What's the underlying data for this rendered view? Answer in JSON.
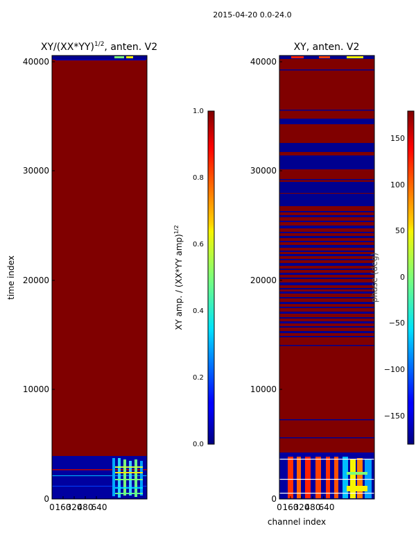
{
  "figure": {
    "suptitle": "2015-04-20 0.0-24.0"
  },
  "chart_data": [
    {
      "type": "heatmap",
      "title": "XY/(XX*YY)¹ᐟ², anten. V2",
      "title_parts": {
        "main": "XY/(XX*YY)",
        "sup": "1/2",
        "suffix": ", anten. V2"
      },
      "xlabel": "",
      "ylabel": "time index",
      "xticks": [
        0,
        160,
        320,
        480,
        640
      ],
      "yticks": [
        0,
        10000,
        20000,
        30000,
        40000
      ],
      "ylim": [
        0,
        40600
      ],
      "colorbar": {
        "label": "XY amp. / (XX*YY amp)",
        "label_sup": "1/2",
        "range": [
          0.0,
          1.0
        ],
        "ticks": [
          "0.0",
          "0.2",
          "0.4",
          "0.6",
          "0.8",
          "1.0"
        ]
      }
    },
    {
      "type": "heatmap",
      "title": "XY, anten. V2",
      "xlabel": "channel index",
      "ylabel": "",
      "xticks": [
        0,
        160,
        320,
        480,
        640
      ],
      "yticks": [
        0,
        10000,
        20000,
        30000,
        40000
      ],
      "ylim": [
        0,
        40600
      ],
      "colorbar": {
        "label": "phase (deg)",
        "range": [
          -180,
          180
        ],
        "ticks": [
          "−150",
          "−100",
          "−50",
          "0",
          "50",
          "100",
          "150"
        ]
      }
    }
  ]
}
